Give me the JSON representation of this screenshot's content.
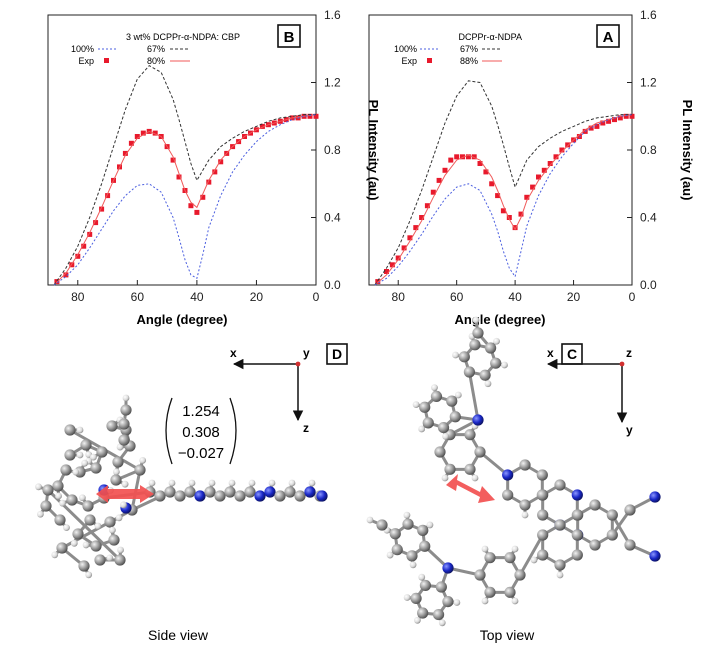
{
  "figure": {
    "mirrored": true,
    "panel_a": {
      "letter": "A",
      "legend": [
        "DCPPr-α-NDPA",
        "100%",
        "67%",
        "Exp",
        "88%"
      ],
      "xlabel": "Angle (degree)",
      "ylabel": "PL Intensity (au)",
      "yticks": [
        "0.0",
        "0.4",
        "0.8",
        "1.2",
        "1.6"
      ],
      "xticks": [
        "80",
        "60",
        "40",
        "20",
        "0"
      ]
    },
    "panel_b": {
      "letter": "B",
      "legend": [
        "3 wt% DCPPr-α-NDPA: CBP",
        "100%",
        "67%",
        "Exp",
        "80%"
      ],
      "xlabel": "Angle (degree)",
      "ylabel": "PL Intensity (au)",
      "yticks": [
        "0.0",
        "0.4",
        "0.8",
        "1.2",
        "1.6"
      ],
      "xticks": [
        "80",
        "60",
        "40",
        "20",
        "0"
      ]
    },
    "panel_c": {
      "letter": "C",
      "axis_x": "x",
      "axis_y": "y",
      "axis_z": "z",
      "caption": "Top view"
    },
    "panel_d": {
      "letter": "D",
      "axis_x": "x",
      "axis_y": "y",
      "axis_z": "z",
      "caption": "Side view",
      "vector": [
        "1.254",
        "0.308",
        "−0.027"
      ]
    },
    "colors": {
      "exp": "#e8192c",
      "fit": "#f05a5a",
      "p100": "#333333",
      "p67": "#4b5fe0",
      "atom_c": "#888888",
      "atom_n": "#1a28c8",
      "atom_h": "#d8d8d8",
      "arrow": "#f25050"
    }
  },
  "chart_data": [
    {
      "type": "scatter",
      "panel": "A",
      "title": "",
      "xlabel": "Angle (degree)",
      "ylabel": "PL Intensity (au)",
      "xlim": [
        0,
        90
      ],
      "ylim": [
        0,
        1.6
      ],
      "x_reversed": true,
      "series": [
        {
          "name": "Exp",
          "style": "markers",
          "x": [
            87,
            84,
            82,
            80,
            78,
            76,
            74,
            72,
            70,
            68,
            66,
            64,
            62,
            60,
            58,
            56,
            54,
            52,
            50,
            48,
            46,
            44,
            42,
            40,
            38,
            36,
            34,
            32,
            30,
            28,
            26,
            24,
            22,
            20,
            18,
            16,
            14,
            12,
            10,
            8,
            6,
            4,
            2,
            0
          ],
          "y": [
            0.02,
            0.08,
            0.12,
            0.16,
            0.22,
            0.28,
            0.34,
            0.4,
            0.47,
            0.55,
            0.62,
            0.68,
            0.74,
            0.76,
            0.76,
            0.76,
            0.76,
            0.72,
            0.67,
            0.6,
            0.53,
            0.44,
            0.4,
            0.34,
            0.42,
            0.52,
            0.58,
            0.64,
            0.68,
            0.72,
            0.76,
            0.8,
            0.83,
            0.86,
            0.88,
            0.91,
            0.93,
            0.94,
            0.96,
            0.97,
            0.98,
            0.99,
            1.0,
            1.0
          ]
        },
        {
          "name": "88%",
          "style": "solid",
          "x": [
            88,
            84,
            80,
            76,
            72,
            68,
            64,
            60,
            56,
            52,
            48,
            46,
            44,
            42,
            40,
            38,
            36,
            32,
            28,
            24,
            20,
            16,
            12,
            8,
            4,
            0
          ],
          "y": [
            0.0,
            0.06,
            0.15,
            0.26,
            0.38,
            0.52,
            0.65,
            0.74,
            0.77,
            0.74,
            0.64,
            0.56,
            0.47,
            0.39,
            0.33,
            0.4,
            0.5,
            0.62,
            0.71,
            0.79,
            0.86,
            0.92,
            0.96,
            0.98,
            1.0,
            1.01
          ]
        },
        {
          "name": "100%",
          "style": "dash",
          "x": [
            88,
            84,
            80,
            76,
            72,
            68,
            64,
            60,
            56,
            52,
            48,
            46,
            44,
            42,
            40,
            38,
            36,
            32,
            28,
            24,
            20,
            16,
            12,
            8,
            4,
            0
          ],
          "y": [
            0.0,
            0.1,
            0.22,
            0.38,
            0.56,
            0.76,
            0.96,
            1.12,
            1.21,
            1.2,
            1.06,
            0.95,
            0.83,
            0.7,
            0.58,
            0.66,
            0.74,
            0.82,
            0.87,
            0.91,
            0.94,
            0.97,
            0.99,
            1.0,
            1.01,
            1.01
          ]
        },
        {
          "name": "67%",
          "style": "dot",
          "x": [
            88,
            84,
            80,
            76,
            72,
            68,
            64,
            60,
            56,
            52,
            48,
            46,
            44,
            42,
            40,
            38,
            36,
            32,
            28,
            24,
            20,
            16,
            12,
            8,
            4,
            0
          ],
          "y": [
            0.0,
            0.04,
            0.11,
            0.2,
            0.3,
            0.41,
            0.51,
            0.58,
            0.6,
            0.56,
            0.42,
            0.32,
            0.2,
            0.1,
            0.05,
            0.2,
            0.35,
            0.53,
            0.66,
            0.76,
            0.84,
            0.91,
            0.95,
            0.98,
            1.0,
            1.01
          ]
        }
      ]
    },
    {
      "type": "scatter",
      "panel": "B",
      "title": "",
      "xlabel": "Angle (degree)",
      "ylabel": "PL Intensity (au)",
      "xlim": [
        0,
        90
      ],
      "ylim": [
        0,
        1.6
      ],
      "x_reversed": true,
      "series": [
        {
          "name": "Exp",
          "style": "markers",
          "x": [
            87,
            84,
            82,
            80,
            78,
            76,
            74,
            72,
            70,
            68,
            66,
            64,
            62,
            60,
            58,
            56,
            54,
            52,
            50,
            48,
            46,
            44,
            42,
            40,
            38,
            36,
            34,
            32,
            30,
            28,
            26,
            24,
            22,
            20,
            18,
            16,
            14,
            12,
            10,
            8,
            6,
            4,
            2,
            0
          ],
          "y": [
            0.02,
            0.06,
            0.12,
            0.17,
            0.23,
            0.3,
            0.37,
            0.45,
            0.53,
            0.62,
            0.7,
            0.78,
            0.84,
            0.88,
            0.9,
            0.91,
            0.9,
            0.88,
            0.82,
            0.74,
            0.64,
            0.56,
            0.47,
            0.43,
            0.52,
            0.61,
            0.67,
            0.73,
            0.78,
            0.82,
            0.85,
            0.88,
            0.9,
            0.92,
            0.94,
            0.95,
            0.96,
            0.97,
            0.98,
            0.99,
            0.99,
            1.0,
            1.0,
            1.0
          ]
        },
        {
          "name": "80%",
          "style": "solid",
          "x": [
            88,
            84,
            80,
            76,
            72,
            68,
            64,
            60,
            56,
            52,
            48,
            46,
            44,
            42,
            40,
            38,
            36,
            32,
            28,
            24,
            20,
            16,
            12,
            8,
            4,
            0
          ],
          "y": [
            0.0,
            0.07,
            0.18,
            0.31,
            0.46,
            0.62,
            0.77,
            0.87,
            0.91,
            0.88,
            0.76,
            0.66,
            0.56,
            0.49,
            0.46,
            0.54,
            0.62,
            0.74,
            0.82,
            0.88,
            0.92,
            0.95,
            0.97,
            0.99,
            1.0,
            1.01
          ]
        },
        {
          "name": "100%",
          "style": "dash",
          "x": [
            88,
            84,
            80,
            76,
            72,
            68,
            64,
            60,
            56,
            52,
            48,
            46,
            44,
            42,
            40,
            38,
            36,
            32,
            28,
            24,
            20,
            16,
            12,
            8,
            4,
            0
          ],
          "y": [
            0.0,
            0.1,
            0.23,
            0.4,
            0.6,
            0.82,
            1.04,
            1.22,
            1.3,
            1.26,
            1.1,
            0.98,
            0.85,
            0.72,
            0.62,
            0.68,
            0.74,
            0.82,
            0.87,
            0.91,
            0.94,
            0.97,
            0.99,
            1.0,
            1.01,
            1.01
          ]
        },
        {
          "name": "67%",
          "style": "dot",
          "x": [
            88,
            84,
            80,
            76,
            72,
            68,
            64,
            60,
            56,
            52,
            48,
            46,
            44,
            42,
            40,
            38,
            36,
            32,
            28,
            24,
            20,
            16,
            12,
            8,
            4,
            0
          ],
          "y": [
            0.0,
            0.05,
            0.12,
            0.22,
            0.33,
            0.44,
            0.53,
            0.59,
            0.6,
            0.55,
            0.4,
            0.28,
            0.15,
            0.06,
            0.04,
            0.18,
            0.34,
            0.53,
            0.67,
            0.77,
            0.85,
            0.91,
            0.95,
            0.98,
            1.0,
            1.01
          ]
        }
      ]
    }
  ]
}
